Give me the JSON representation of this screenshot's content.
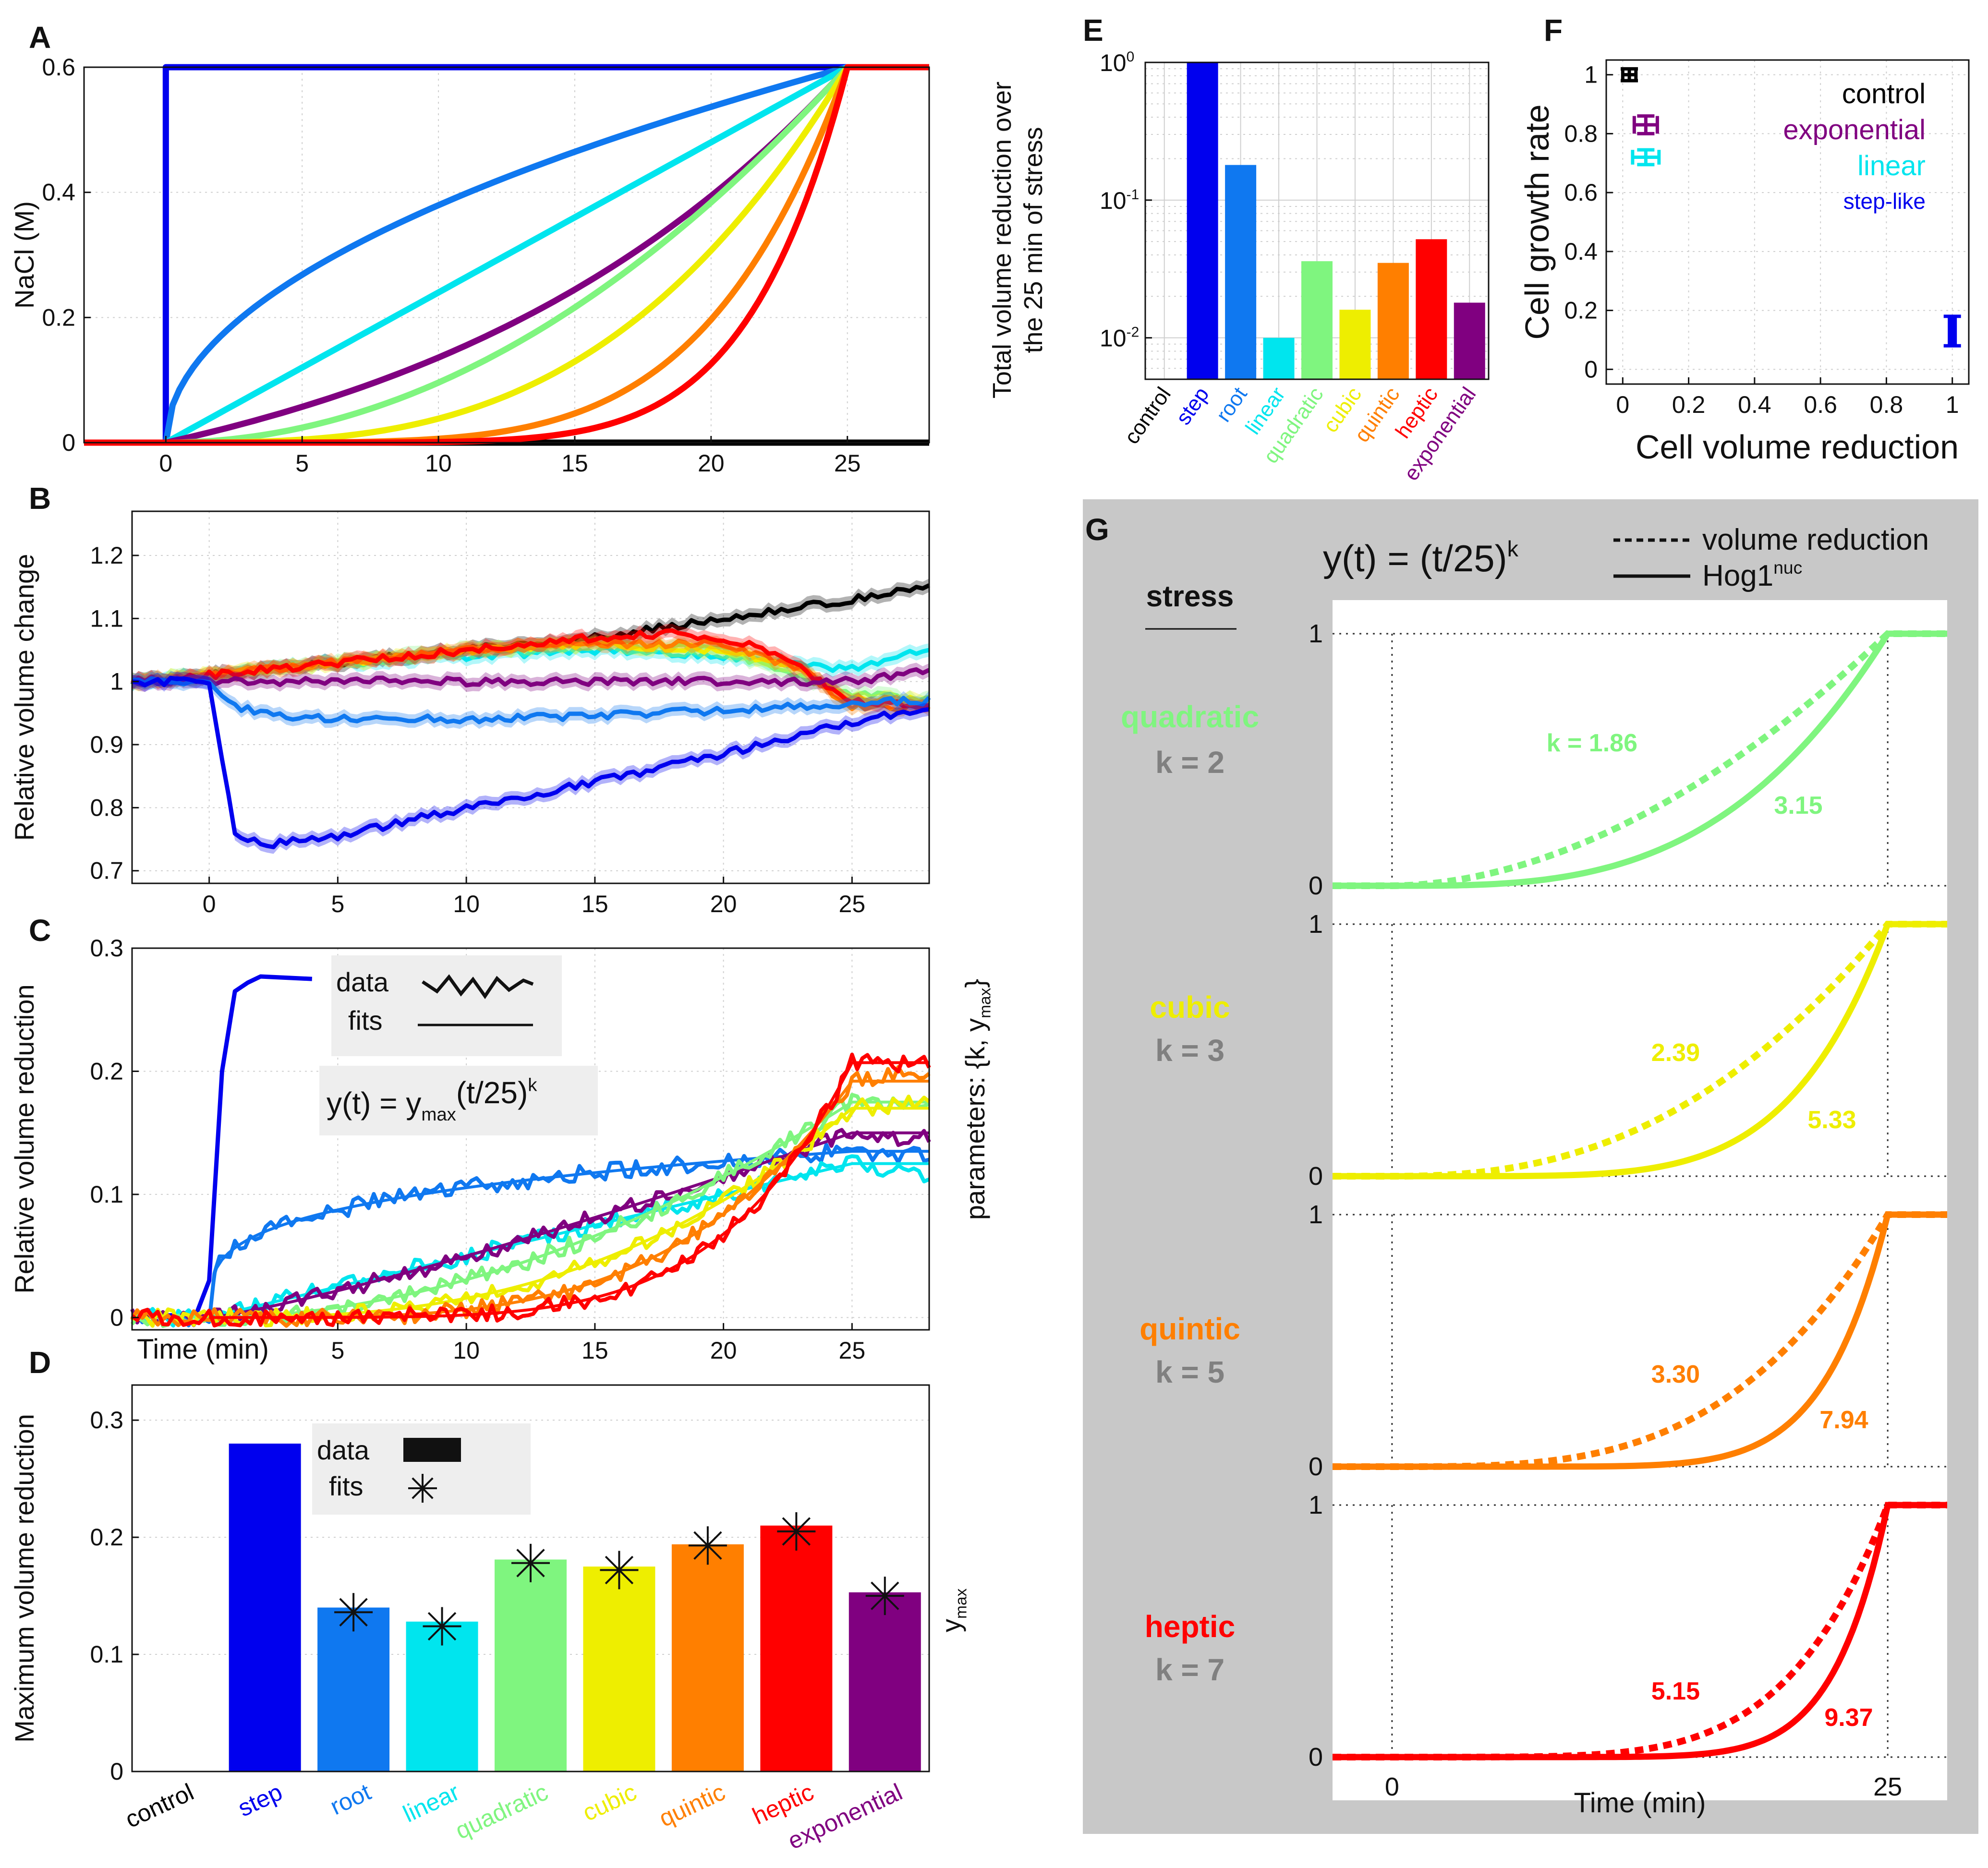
{
  "colors": {
    "control": "#000000",
    "step": "#0000ee",
    "root": "#0f78f0",
    "linear": "#00e5ee",
    "quadratic": "#7ff57f",
    "cubic": "#eeee00",
    "quintic": "#ff7f00",
    "heptic": "#ff0000",
    "exponential": "#800080",
    "panel_g_bg": "#c8c8c8",
    "k_label": "#808080"
  },
  "panels": {
    "A": "A",
    "B": "B",
    "C": "C",
    "D": "D",
    "E": "E",
    "F": "F",
    "G": "G"
  },
  "chart_data": [
    {
      "id": "A",
      "type": "line",
      "ylabel": "NaCl (M)",
      "xlim": [
        -3,
        28
      ],
      "ylim": [
        0,
        0.6
      ],
      "xticks": [
        0,
        5,
        10,
        15,
        20,
        25
      ],
      "yticks": [
        0,
        0.2,
        0.4,
        0.6
      ],
      "series": [
        {
          "key": "control",
          "shape": "zero"
        },
        {
          "key": "step",
          "shape": "step",
          "ymax": 0.6
        },
        {
          "key": "root",
          "shape": "power",
          "k": 0.5,
          "ymax": 0.6
        },
        {
          "key": "linear",
          "shape": "power",
          "k": 1,
          "ymax": 0.6
        },
        {
          "key": "exponential",
          "shape": "exp",
          "ymax": 0.6
        },
        {
          "key": "quadratic",
          "shape": "power",
          "k": 2,
          "ymax": 0.6
        },
        {
          "key": "cubic",
          "shape": "power",
          "k": 3,
          "ymax": 0.6
        },
        {
          "key": "quintic",
          "shape": "power",
          "k": 5,
          "ymax": 0.6
        },
        {
          "key": "heptic",
          "shape": "power",
          "k": 7,
          "ymax": 0.6
        }
      ]
    },
    {
      "id": "B",
      "type": "line",
      "ylabel": "Relative volume change",
      "xlim": [
        -3,
        28
      ],
      "ylim": [
        0.68,
        1.27
      ],
      "xticks": [
        0,
        5,
        10,
        15,
        20,
        25
      ],
      "yticks": [
        0.7,
        0.8,
        0.9,
        1,
        1.1,
        1.2
      ],
      "series": [
        {
          "key": "control",
          "x": [
            -3,
            0,
            5,
            10,
            15,
            20,
            25,
            28
          ],
          "y": [
            1.0,
            1.01,
            1.03,
            1.05,
            1.07,
            1.1,
            1.13,
            1.15
          ]
        },
        {
          "key": "linear",
          "x": [
            -3,
            0,
            5,
            10,
            15,
            20,
            25,
            28
          ],
          "y": [
            1.0,
            1.01,
            1.03,
            1.04,
            1.05,
            1.04,
            1.02,
            1.05
          ]
        },
        {
          "key": "quadratic",
          "x": [
            -3,
            0,
            5,
            10,
            15,
            20,
            22,
            25,
            28
          ],
          "y": [
            1.0,
            1.01,
            1.03,
            1.05,
            1.06,
            1.05,
            1.02,
            0.98,
            0.97
          ]
        },
        {
          "key": "cubic",
          "x": [
            -3,
            0,
            5,
            10,
            15,
            20,
            23,
            25,
            28
          ],
          "y": [
            1.0,
            1.01,
            1.03,
            1.05,
            1.06,
            1.05,
            1.02,
            0.97,
            0.97
          ]
        },
        {
          "key": "quintic",
          "x": [
            -3,
            0,
            5,
            10,
            15,
            20,
            23,
            25,
            28
          ],
          "y": [
            1.0,
            1.01,
            1.03,
            1.05,
            1.06,
            1.06,
            1.02,
            0.96,
            0.96
          ]
        },
        {
          "key": "heptic",
          "x": [
            -3,
            0,
            5,
            10,
            15,
            18,
            21,
            23,
            25,
            28
          ],
          "y": [
            1.0,
            1.01,
            1.03,
            1.05,
            1.07,
            1.075,
            1.06,
            1.02,
            0.97,
            0.96
          ]
        },
        {
          "key": "exponential",
          "x": [
            -3,
            0,
            5,
            10,
            15,
            20,
            25,
            28
          ],
          "y": [
            1.0,
            1.0,
            1.0,
            1.0,
            1.0,
            1.0,
            1.0,
            1.02
          ]
        },
        {
          "key": "root",
          "x": [
            -3,
            0,
            1,
            3,
            5,
            10,
            15,
            20,
            25,
            28
          ],
          "y": [
            1.0,
            1.0,
            0.96,
            0.945,
            0.94,
            0.94,
            0.945,
            0.955,
            0.965,
            0.97
          ]
        },
        {
          "key": "step",
          "x": [
            -3,
            0,
            0.5,
            1,
            2,
            5,
            10,
            15,
            20,
            25,
            28
          ],
          "y": [
            1.0,
            1.0,
            0.88,
            0.76,
            0.74,
            0.755,
            0.8,
            0.84,
            0.885,
            0.935,
            0.96
          ]
        }
      ]
    },
    {
      "id": "C",
      "type": "line",
      "ylabel": "Relative volume reduction",
      "xlabel": "Time (min)",
      "right_label": "parameters: {k, y",
      "right_label_sub": "max",
      "right_label_end": "}",
      "xlim": [
        -3,
        28
      ],
      "ylim": [
        -0.01,
        0.3
      ],
      "xticks": [
        5,
        10,
        15,
        20,
        25
      ],
      "yticks": [
        0,
        0.1,
        0.2,
        0.3
      ],
      "legend": {
        "data": "data",
        "fits": "fits"
      },
      "formula": {
        "a": "y(t) = y",
        "sub": "max",
        "b": "(t/25)",
        "sup": "k"
      },
      "series": [
        {
          "key": "step",
          "data_x": [
            -3,
            -0.5,
            0,
            0.5,
            1,
            1.5,
            2,
            4
          ],
          "data_y": [
            0,
            0.003,
            0.03,
            0.2,
            0.265,
            0.272,
            0.277,
            0.275
          ]
        },
        {
          "key": "root",
          "k": 0.27,
          "ymax": 0.135,
          "end": 0.13
        },
        {
          "key": "linear",
          "k": 1,
          "ymax": 0.125,
          "end": 0.115
        },
        {
          "key": "exponential",
          "k": 1.2,
          "ymax": 0.15,
          "end": 0.145
        },
        {
          "key": "quadratic",
          "k": 1.9,
          "ymax": 0.175,
          "end": 0.17
        },
        {
          "key": "cubic",
          "k": 2.6,
          "ymax": 0.17,
          "end": 0.175
        },
        {
          "key": "quintic",
          "k": 3.7,
          "ymax": 0.192,
          "end": 0.2
        },
        {
          "key": "heptic",
          "k": 5.0,
          "ymax": 0.207,
          "end": 0.205
        }
      ]
    },
    {
      "id": "D",
      "type": "bar",
      "ylabel": "Maximum volume reduction",
      "right_label": "y",
      "right_label_sub": "max",
      "ylim": [
        0,
        0.33
      ],
      "yticks": [
        0,
        0.1,
        0.2,
        0.3
      ],
      "legend": {
        "data": "data",
        "fits": "fits"
      },
      "categories": [
        "control",
        "step",
        "root",
        "linear",
        "quadratic",
        "cubic",
        "quintic",
        "heptic",
        "exponential"
      ],
      "values": [
        0,
        0.28,
        0.14,
        0.128,
        0.181,
        0.175,
        0.194,
        0.21,
        0.153
      ],
      "fits": [
        null,
        null,
        0.136,
        0.124,
        0.178,
        0.172,
        0.193,
        0.205,
        0.15
      ]
    },
    {
      "id": "E",
      "type": "bar",
      "scale": "log",
      "ylabel_line1": "Total volume reduction over",
      "ylabel_line2": "the 25 min of stress",
      "ylim": [
        0.005,
        1
      ],
      "yticks": [
        {
          "v": 0.01,
          "base": "10",
          "exp": "-2"
        },
        {
          "v": 0.1,
          "base": "10",
          "exp": "-1"
        },
        {
          "v": 1,
          "base": "10",
          "exp": "0"
        }
      ],
      "categories": [
        "control",
        "step",
        "root",
        "linear",
        "quadratic",
        "cubic",
        "quintic",
        "heptic",
        "exponential"
      ],
      "values": [
        null,
        1.0,
        0.18,
        0.01,
        0.036,
        0.016,
        0.035,
        0.052,
        0.018
      ]
    },
    {
      "id": "F",
      "type": "scatter",
      "xlabel": "Cell volume reduction",
      "ylabel": "Cell growth rate",
      "xlim": [
        -0.05,
        1.05
      ],
      "ylim": [
        -0.05,
        1.05
      ],
      "xticks": [
        0,
        0.2,
        0.4,
        0.6,
        0.8,
        1
      ],
      "xtick_labels": [
        "0",
        "0.2",
        "0.4",
        "0.6",
        "0.8",
        "1"
      ],
      "yticks": [
        0,
        0.2,
        0.4,
        0.6,
        0.8,
        1
      ],
      "ytick_labels": [
        "0",
        "0.2",
        "0.4",
        "0.6",
        "0.8",
        "1"
      ],
      "points": [
        {
          "key": "control",
          "x": 0.02,
          "y": 1.0,
          "xerr": 0.02,
          "yerr": 0.02
        },
        {
          "key": "exponential",
          "x": 0.07,
          "y": 0.83,
          "xerr": 0.035,
          "yerr": 0.03
        },
        {
          "key": "linear",
          "x": 0.07,
          "y": 0.72,
          "xerr": 0.04,
          "yerr": 0.025
        },
        {
          "key": "step",
          "x": 1.0,
          "y": 0.13,
          "xerr": 0.0,
          "yerr": 0.05
        }
      ],
      "legend": [
        {
          "key": "control",
          "label": "control"
        },
        {
          "key": "exponential",
          "label": "exponential"
        },
        {
          "key": "linear",
          "label": "linear"
        },
        {
          "key": "step",
          "label": "step-like"
        }
      ]
    },
    {
      "id": "G",
      "type": "line",
      "formula": {
        "a": "y(t) = (t/25)",
        "sup": "k"
      },
      "legend": {
        "dotted": "volume reduction",
        "solid_a": "Hog1",
        "solid_sup": "nuc"
      },
      "stress_header": "stress",
      "xlabel": "Time (min)",
      "xticks": [
        {
          "v": 0,
          "label": "0"
        },
        {
          "v": 25,
          "label": "25"
        }
      ],
      "yticks": [
        {
          "v": 0,
          "label": "0"
        },
        {
          "v": 1,
          "label": "1"
        }
      ],
      "xlim": [
        -3,
        28
      ],
      "rows": [
        {
          "key": "quadratic",
          "name": "quadratic",
          "k_text": "k = 2",
          "k_dotted": 1.86,
          "k_solid": 3.15,
          "dotted_label": "k = 1.86",
          "solid_label": "3.15"
        },
        {
          "key": "cubic",
          "name": "cubic",
          "k_text": "k = 3",
          "k_dotted": 2.39,
          "k_solid": 5.33,
          "dotted_label": "2.39",
          "solid_label": "5.33"
        },
        {
          "key": "quintic",
          "name": "quintic",
          "k_text": "k = 5",
          "k_dotted": 3.3,
          "k_solid": 7.94,
          "dotted_label": "3.30",
          "solid_label": "7.94"
        },
        {
          "key": "heptic",
          "name": "heptic",
          "k_text": "k = 7",
          "k_dotted": 5.15,
          "k_solid": 9.37,
          "dotted_label": "5.15",
          "solid_label": "9.37"
        }
      ]
    }
  ]
}
